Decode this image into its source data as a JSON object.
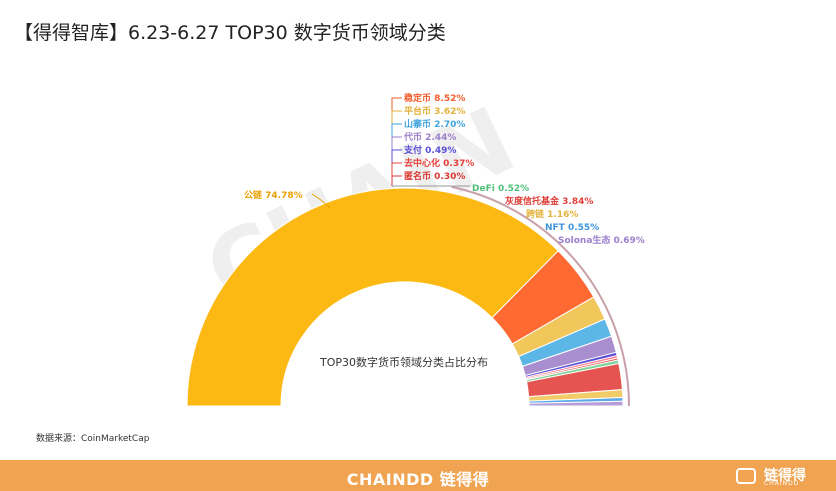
{
  "page": {
    "title": "【得得智库】6.23-6.27  TOP30 数字货币领域分类",
    "source": "数据来源：CoinMarketCap",
    "footer_brand": "CHAINDD 链得得",
    "footer_logo_name": "链得得",
    "footer_logo_sub": "CHAINDD",
    "watermark": "CHAIN"
  },
  "chart_data": {
    "type": "pie",
    "variant": "half-donut",
    "title": "TOP30数字货币领域分类占比分布",
    "unit": "%",
    "slices": [
      {
        "label": "公链",
        "value": 74.78,
        "display": "公链 74.78%",
        "color": "#fdb913",
        "text_color": "#e8a000"
      },
      {
        "label": "稳定币",
        "value": 8.52,
        "display": "稳定币 8.52%",
        "color": "#ff6a33",
        "text_color": "#f25c2a"
      },
      {
        "label": "平台币",
        "value": 3.62,
        "display": "平台币 3.62%",
        "color": "#f1c65a",
        "text_color": "#e3b23c"
      },
      {
        "label": "山寨币",
        "value": 2.7,
        "display": "山寨币 2.70%",
        "color": "#5cb6e6",
        "text_color": "#3fa3dc"
      },
      {
        "label": "代币",
        "value": 2.44,
        "display": "代币 2.44%",
        "color": "#a98fd0",
        "text_color": "#9b7fcb"
      },
      {
        "label": "支付",
        "value": 0.49,
        "display": "支付 0.49%",
        "color": "#5a4fd8",
        "text_color": "#5a4fd8"
      },
      {
        "label": "去中心化",
        "value": 0.37,
        "display": "去中心化 0.37%",
        "color": "#ff7b8c",
        "text_color": "#e8403b"
      },
      {
        "label": "匿名币",
        "value": 0.3,
        "display": "匿名币 0.30%",
        "color": "#e8504a",
        "text_color": "#d93a34"
      },
      {
        "label": "DeFi",
        "value": 0.52,
        "display": "DeFi 0.52%",
        "color": "#7fd39a",
        "text_color": "#4fbf7a"
      },
      {
        "label": "灰度信托基金",
        "value": 3.84,
        "display": "灰度信托基金 3.84%",
        "color": "#e55451",
        "text_color": "#e0403c"
      },
      {
        "label": "跨链",
        "value": 1.16,
        "display": "跨链 1.16%",
        "color": "#f3cc6a",
        "text_color": "#e3b23c"
      },
      {
        "label": "NFT",
        "value": 0.55,
        "display": "NFT 0.55%",
        "color": "#5aa8e8",
        "text_color": "#3e95dd"
      },
      {
        "label": "Solona生态",
        "value": 0.69,
        "display": "Solona生态 0.69%",
        "color": "#b59ed9",
        "text_color": "#9b7fcb"
      }
    ]
  }
}
